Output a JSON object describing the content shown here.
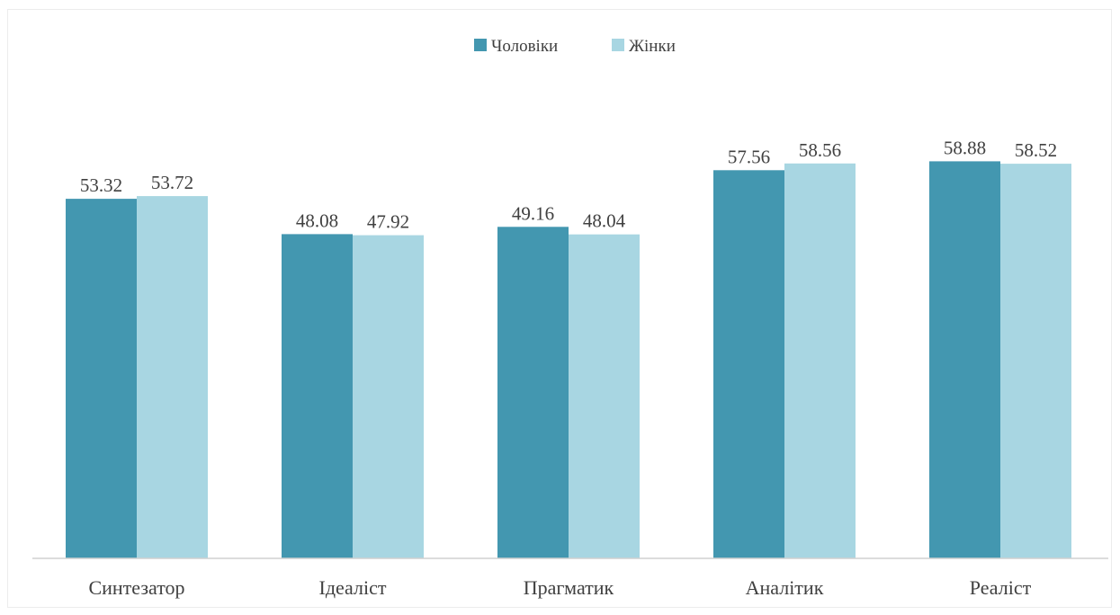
{
  "chart_data": {
    "type": "bar",
    "title": "",
    "xlabel": "",
    "ylabel": "",
    "ylim": [
      0,
      60
    ],
    "grid": false,
    "legend_position": "top-center",
    "categories": [
      "Синтезатор",
      "Ідеаліст",
      "Прагматик",
      "Аналітик",
      "Реаліст"
    ],
    "series": [
      {
        "name": "Чоловіки",
        "color": "#4397b0",
        "values": [
          53.32,
          48.08,
          49.16,
          57.56,
          58.88
        ],
        "labels": [
          "53.32",
          "48.08",
          "49.16",
          "57.56",
          "58.88"
        ]
      },
      {
        "name": "Жінки",
        "color": "#a8d6e2",
        "values": [
          53.72,
          47.92,
          48.04,
          58.56,
          58.52
        ],
        "labels": [
          "53.72",
          "47.92",
          "48.04",
          "58.56",
          "58.52"
        ]
      }
    ]
  }
}
